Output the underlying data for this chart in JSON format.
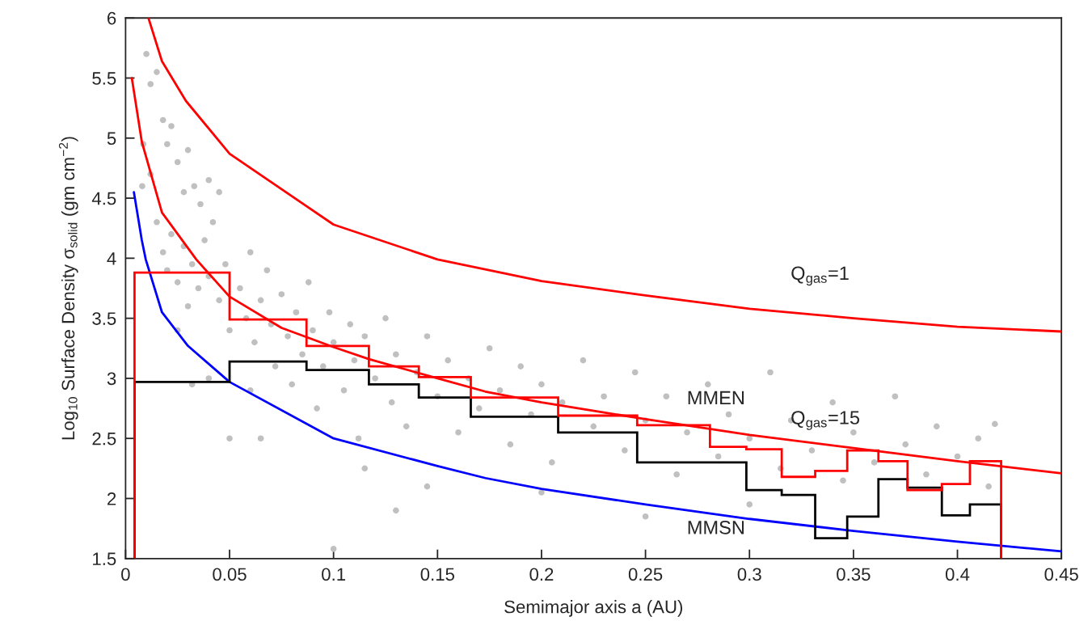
{
  "chart_data": {
    "type": "line",
    "xlabel": "Semimajor axis a (AU)",
    "ylabel": "Log$_{10}$ Surface Density σ$_{solid}$ (gm cm$^{−2}$)",
    "xlim": [
      0,
      0.45
    ],
    "ylim": [
      1.5,
      6
    ],
    "xticks": [
      0,
      0.05,
      0.1,
      0.15,
      0.2,
      0.25,
      0.3,
      0.35,
      0.4,
      0.45
    ],
    "yticks": [
      1.5,
      2,
      2.5,
      3,
      3.5,
      4,
      4.5,
      5,
      5.5,
      6
    ],
    "grid": false,
    "legend": false,
    "marker": "none",
    "line_style": "solid",
    "annotations": [
      "Q$_{gas}$=1",
      "MMEN",
      "Q$_{gas}$=15",
      "MMSN"
    ],
    "series": [
      {
        "type": "scatter",
        "color": "#c0c0c0",
        "marker": "circle",
        "x": [
          0.01,
          0.012,
          0.015,
          0.018,
          0.02,
          0.022,
          0.025,
          0.028,
          0.03,
          0.033,
          0.036,
          0.04,
          0.042,
          0.045,
          0.015,
          0.018,
          0.02,
          0.022,
          0.025,
          0.028,
          0.03,
          0.032,
          0.035,
          0.038,
          0.04,
          0.045,
          0.048,
          0.05,
          0.055,
          0.058,
          0.06,
          0.062,
          0.065,
          0.068,
          0.07,
          0.072,
          0.075,
          0.078,
          0.08,
          0.082,
          0.085,
          0.088,
          0.09,
          0.092,
          0.095,
          0.098,
          0.1,
          0.105,
          0.108,
          0.11,
          0.112,
          0.115,
          0.12,
          0.125,
          0.128,
          0.13,
          0.135,
          0.14,
          0.145,
          0.15,
          0.155,
          0.16,
          0.165,
          0.17,
          0.175,
          0.18,
          0.185,
          0.19,
          0.195,
          0.2,
          0.205,
          0.21,
          0.22,
          0.225,
          0.23,
          0.24,
          0.245,
          0.25,
          0.26,
          0.265,
          0.27,
          0.28,
          0.285,
          0.29,
          0.3,
          0.31,
          0.315,
          0.32,
          0.33,
          0.34,
          0.345,
          0.35,
          0.36,
          0.37,
          0.375,
          0.385,
          0.39,
          0.4,
          0.41,
          0.415,
          0.418,
          0.05,
          0.06,
          0.04,
          0.032,
          0.025,
          0.012,
          0.0085,
          0.008,
          0.13,
          0.1,
          0.25,
          0.3,
          0.2,
          0.145,
          0.115,
          0.065
        ],
        "values": [
          5.7,
          5.45,
          5.55,
          5.15,
          4.95,
          5.1,
          4.8,
          4.55,
          4.9,
          4.6,
          4.45,
          4.65,
          4.3,
          4.55,
          4.3,
          4.05,
          3.9,
          4.2,
          3.8,
          4.1,
          3.6,
          3.95,
          3.75,
          4.15,
          3.85,
          3.65,
          3.95,
          3.4,
          3.75,
          3.5,
          4.05,
          3.3,
          3.65,
          3.9,
          3.45,
          3.1,
          3.7,
          3.35,
          2.95,
          3.55,
          3.2,
          3.8,
          3.4,
          2.75,
          3.1,
          3.55,
          3.3,
          2.9,
          3.45,
          3.15,
          2.5,
          3.35,
          3.0,
          3.5,
          2.8,
          3.2,
          2.6,
          3.05,
          3.35,
          2.85,
          3.15,
          2.55,
          3.0,
          2.75,
          3.25,
          2.9,
          2.45,
          3.1,
          2.7,
          2.95,
          2.3,
          2.8,
          3.15,
          2.6,
          2.85,
          2.4,
          3.05,
          2.65,
          2.85,
          2.2,
          2.55,
          2.95,
          2.35,
          2.7,
          2.5,
          3.05,
          2.25,
          2.65,
          2.4,
          2.8,
          2.15,
          2.55,
          2.3,
          2.85,
          2.45,
          2.2,
          2.6,
          2.35,
          2.5,
          2.1,
          2.62,
          2.5,
          2.9,
          3.0,
          2.95,
          3.4,
          4.7,
          4.95,
          4.6,
          1.9,
          1.58,
          1.85,
          1.95,
          2.05,
          2.1,
          2.25,
          2.5
        ]
      },
      {
        "color": "#ff0000",
        "x": [
          0.011,
          0.0175,
          0.029,
          0.05,
          0.1,
          0.15,
          0.2,
          0.25,
          0.3,
          0.35,
          0.4,
          0.45
        ],
        "values": [
          6.0,
          5.64,
          5.31,
          4.87,
          4.28,
          3.99,
          3.81,
          3.69,
          3.58,
          3.5,
          3.43,
          3.39
        ]
      },
      {
        "color": "#ff0000",
        "x": [
          0.003,
          0.0078,
          0.0175,
          0.034,
          0.05,
          0.075,
          0.1,
          0.117,
          0.15,
          0.173,
          0.2,
          0.25,
          0.3,
          0.35,
          0.4,
          0.45
        ],
        "values": [
          5.5,
          4.97,
          4.38,
          3.99,
          3.68,
          3.42,
          3.26,
          3.16,
          3.0,
          2.89,
          2.8,
          2.66,
          2.53,
          2.42,
          2.31,
          2.21
        ]
      },
      {
        "color": "#0000ff",
        "x": [
          0.004,
          0.0078,
          0.0097,
          0.0175,
          0.03,
          0.05,
          0.1,
          0.15,
          0.173,
          0.2,
          0.25,
          0.3,
          0.35,
          0.4,
          0.45
        ],
        "values": [
          4.55,
          4.15,
          3.99,
          3.55,
          3.27,
          2.97,
          2.5,
          2.27,
          2.17,
          2.08,
          1.95,
          1.83,
          1.73,
          1.64,
          1.56
        ]
      },
      {
        "type": "histogram",
        "color": "#000000",
        "bins": [
          0.0043,
          0.05,
          0.087,
          0.117,
          0.141,
          0.166,
          0.208,
          0.246,
          0.281,
          0.2985,
          0.3155,
          0.3316,
          0.347,
          0.362,
          0.376,
          0.3925,
          0.406,
          0.421
        ],
        "values": [
          2.97,
          3.14,
          3.07,
          2.95,
          2.84,
          2.68,
          2.55,
          2.3,
          2.3,
          2.07,
          2.03,
          1.67,
          1.85,
          2.16,
          2.09,
          1.86,
          1.95
        ]
      },
      {
        "type": "histogram",
        "color": "#ff0000",
        "bins": [
          0.0043,
          0.05,
          0.087,
          0.117,
          0.141,
          0.166,
          0.208,
          0.246,
          0.281,
          0.2985,
          0.3155,
          0.3316,
          0.347,
          0.362,
          0.376,
          0.3925,
          0.406,
          0.421
        ],
        "values": [
          3.88,
          3.49,
          3.27,
          3.1,
          3.01,
          2.84,
          2.69,
          2.61,
          2.43,
          2.41,
          2.18,
          2.23,
          2.4,
          2.31,
          2.07,
          2.12,
          2.31
        ]
      }
    ]
  }
}
